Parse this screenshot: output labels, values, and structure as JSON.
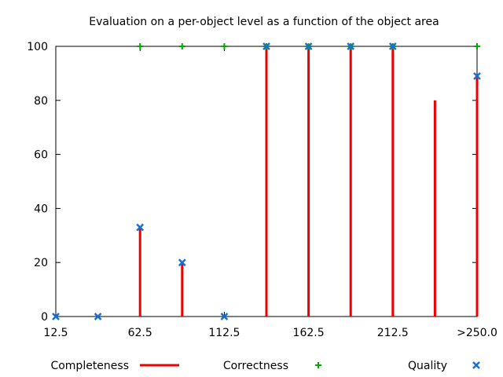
{
  "chart_data": {
    "type": "bar",
    "title": "Evaluation on a per-object level as a function of the object area",
    "xlabel": "",
    "ylabel": "",
    "x_tick_labels": [
      "12.5",
      "62.5",
      "112.5",
      "162.5",
      "212.5",
      ">250.0"
    ],
    "y_tick_labels": [
      "0",
      "20",
      "40",
      "60",
      "80",
      "100"
    ],
    "xlim": [
      12.5,
      262.5
    ],
    "ylim": [
      0,
      100
    ],
    "grid": false,
    "legend_position": "bottom",
    "x": [
      12.5,
      37.5,
      62.5,
      87.5,
      112.5,
      137.5,
      162.5,
      187.5,
      212.5,
      237.5,
      262.5
    ],
    "series": [
      {
        "name": "Completeness",
        "style": "impulses",
        "color": "#ee0000",
        "values": [
          0,
          0,
          33,
          20,
          0,
          100,
          100,
          100,
          100,
          80,
          89
        ]
      },
      {
        "name": "Correctness",
        "style": "plus-points",
        "color": "#00aa00",
        "values": [
          null,
          null,
          100,
          100,
          100,
          100,
          100,
          100,
          100,
          null,
          100
        ]
      },
      {
        "name": "Quality",
        "style": "x-points",
        "color": "#1a6fd4",
        "values": [
          0,
          0,
          33,
          20,
          0,
          100,
          100,
          100,
          100,
          null,
          89
        ]
      }
    ]
  }
}
